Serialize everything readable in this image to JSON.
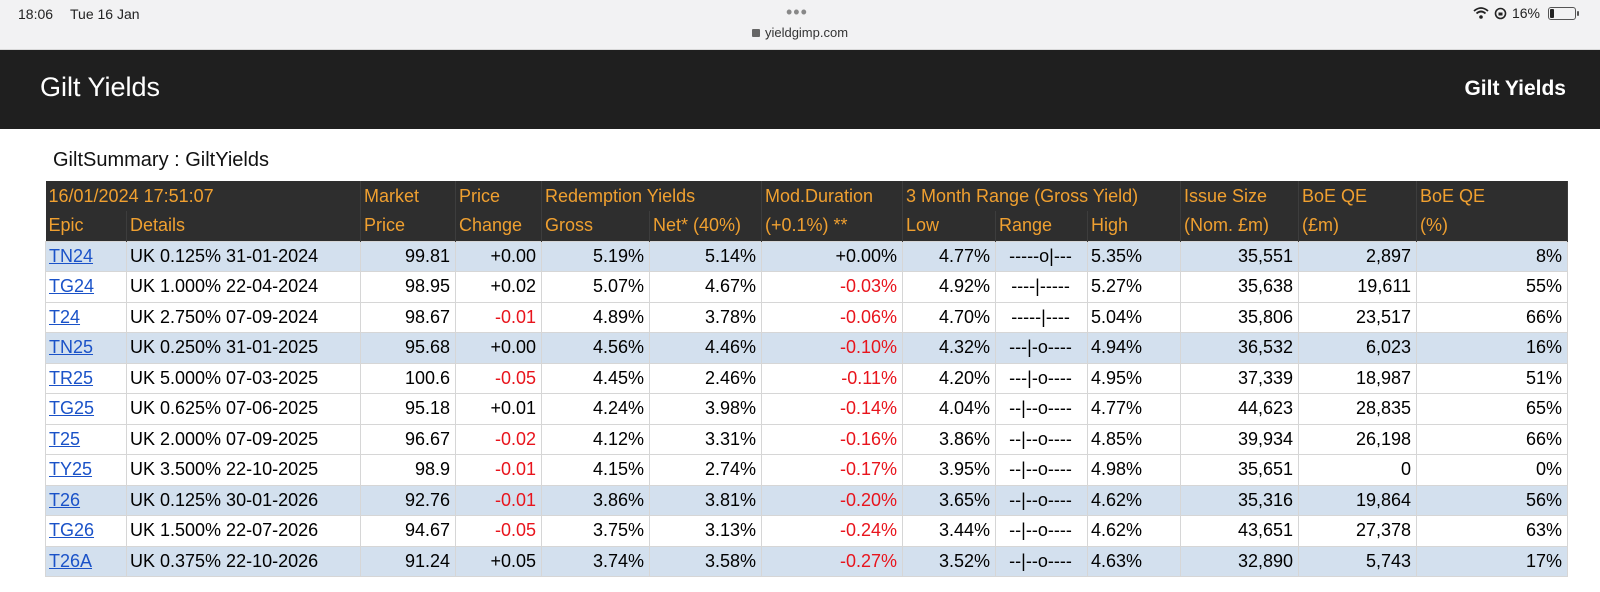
{
  "status_bar": {
    "time": "18:06",
    "date": "Tue 16 Jan",
    "url": "yieldgimp.com",
    "battery": "16%",
    "battery_level": 0.16
  },
  "site": {
    "title": "Gilt Yields",
    "nav_right": "Gilt Yields"
  },
  "summary_title": "GiltSummary : GiltYields",
  "table": {
    "header_row1": {
      "timestamp": "16/01/2024 17:51:07",
      "market": "Market",
      "price": "Price",
      "redemption": "Redemption Yields",
      "modduration": "Mod.Duration",
      "range3m": "3 Month Range (Gross Yield)",
      "issue": "Issue Size",
      "boe1": "BoE QE",
      "boe2": "BoE QE"
    },
    "header_row2": {
      "epic": "Epic",
      "details": "Details",
      "price": "Price",
      "change": "Change",
      "gross": "Gross",
      "net": "Net* (40%)",
      "mod": "(+0.1%) **",
      "low": "Low",
      "range": "Range",
      "high": "High",
      "nom": "(Nom. £m)",
      "qe_m": "(£m)",
      "qe_pct": "(%)"
    },
    "colors": {
      "header_bg": "#2e2e2e",
      "header_text": "#f0a030",
      "highlight_row": "#d3e0ee",
      "negative": "#e8141c",
      "link": "#1a52c8"
    },
    "rows": [
      {
        "epic": "TN24",
        "details": "UK 0.125% 31-01-2024",
        "price": "99.81",
        "change": "+0.00",
        "gross": "5.19%",
        "net": "5.14%",
        "mod": "+0.00%",
        "low": "4.77%",
        "range": "-----o|---",
        "high": "5.35%",
        "issue": "35,551",
        "qe": "2,897",
        "qe_pct": "8%",
        "highlight": true,
        "change_neg": false,
        "mod_neg": false
      },
      {
        "epic": "TG24",
        "details": "UK 1.000% 22-04-2024",
        "price": "98.95",
        "change": "+0.02",
        "gross": "5.07%",
        "net": "4.67%",
        "mod": "-0.03%",
        "low": "4.92%",
        "range": "----|-----",
        "high": "5.27%",
        "issue": "35,638",
        "qe": "19,611",
        "qe_pct": "55%",
        "highlight": false,
        "change_neg": false,
        "mod_neg": true
      },
      {
        "epic": "T24",
        "details": "UK 2.750% 07-09-2024",
        "price": "98.67",
        "change": "-0.01",
        "gross": "4.89%",
        "net": "3.78%",
        "mod": "-0.06%",
        "low": "4.70%",
        "range": "-----|----",
        "high": "5.04%",
        "issue": "35,806",
        "qe": "23,517",
        "qe_pct": "66%",
        "highlight": false,
        "change_neg": true,
        "mod_neg": true
      },
      {
        "epic": "TN25",
        "details": "UK 0.250% 31-01-2025",
        "price": "95.68",
        "change": "+0.00",
        "gross": "4.56%",
        "net": "4.46%",
        "mod": "-0.10%",
        "low": "4.32%",
        "range": "---|-o----",
        "high": "4.94%",
        "issue": "36,532",
        "qe": "6,023",
        "qe_pct": "16%",
        "highlight": true,
        "change_neg": false,
        "mod_neg": true
      },
      {
        "epic": "TR25",
        "details": "UK 5.000% 07-03-2025",
        "price": "100.6",
        "change": "-0.05",
        "gross": "4.45%",
        "net": "2.46%",
        "mod": "-0.11%",
        "low": "4.20%",
        "range": "---|-o----",
        "high": "4.95%",
        "issue": "37,339",
        "qe": "18,987",
        "qe_pct": "51%",
        "highlight": false,
        "change_neg": true,
        "mod_neg": true
      },
      {
        "epic": "TG25",
        "details": "UK 0.625% 07-06-2025",
        "price": "95.18",
        "change": "+0.01",
        "gross": "4.24%",
        "net": "3.98%",
        "mod": "-0.14%",
        "low": "4.04%",
        "range": "--|--o----",
        "high": "4.77%",
        "issue": "44,623",
        "qe": "28,835",
        "qe_pct": "65%",
        "highlight": false,
        "change_neg": false,
        "mod_neg": true
      },
      {
        "epic": "T25",
        "details": "UK 2.000% 07-09-2025",
        "price": "96.67",
        "change": "-0.02",
        "gross": "4.12%",
        "net": "3.31%",
        "mod": "-0.16%",
        "low": "3.86%",
        "range": "--|--o----",
        "high": "4.85%",
        "issue": "39,934",
        "qe": "26,198",
        "qe_pct": "66%",
        "highlight": false,
        "change_neg": true,
        "mod_neg": true
      },
      {
        "epic": "TY25",
        "details": "UK 3.500% 22-10-2025",
        "price": "98.9",
        "change": "-0.01",
        "gross": "4.15%",
        "net": "2.74%",
        "mod": "-0.17%",
        "low": "3.95%",
        "range": "--|--o----",
        "high": "4.98%",
        "issue": "35,651",
        "qe": "0",
        "qe_pct": "0%",
        "highlight": false,
        "change_neg": true,
        "mod_neg": true
      },
      {
        "epic": "T26",
        "details": "UK 0.125% 30-01-2026",
        "price": "92.76",
        "change": "-0.01",
        "gross": "3.86%",
        "net": "3.81%",
        "mod": "-0.20%",
        "low": "3.65%",
        "range": "--|--o----",
        "high": "4.62%",
        "issue": "35,316",
        "qe": "19,864",
        "qe_pct": "56%",
        "highlight": true,
        "change_neg": true,
        "mod_neg": true
      },
      {
        "epic": "TG26",
        "details": "UK 1.500% 22-07-2026",
        "price": "94.67",
        "change": "-0.05",
        "gross": "3.75%",
        "net": "3.13%",
        "mod": "-0.24%",
        "low": "3.44%",
        "range": "--|--o----",
        "high": "4.62%",
        "issue": "43,651",
        "qe": "27,378",
        "qe_pct": "63%",
        "highlight": false,
        "change_neg": true,
        "mod_neg": true
      },
      {
        "epic": "T26A",
        "details": "UK 0.375% 22-10-2026",
        "price": "91.24",
        "change": "+0.05",
        "gross": "3.74%",
        "net": "3.58%",
        "mod": "-0.27%",
        "low": "3.52%",
        "range": "--|--o----",
        "high": "4.63%",
        "issue": "32,890",
        "qe": "5,743",
        "qe_pct": "17%",
        "highlight": true,
        "change_neg": false,
        "mod_neg": true
      }
    ]
  }
}
